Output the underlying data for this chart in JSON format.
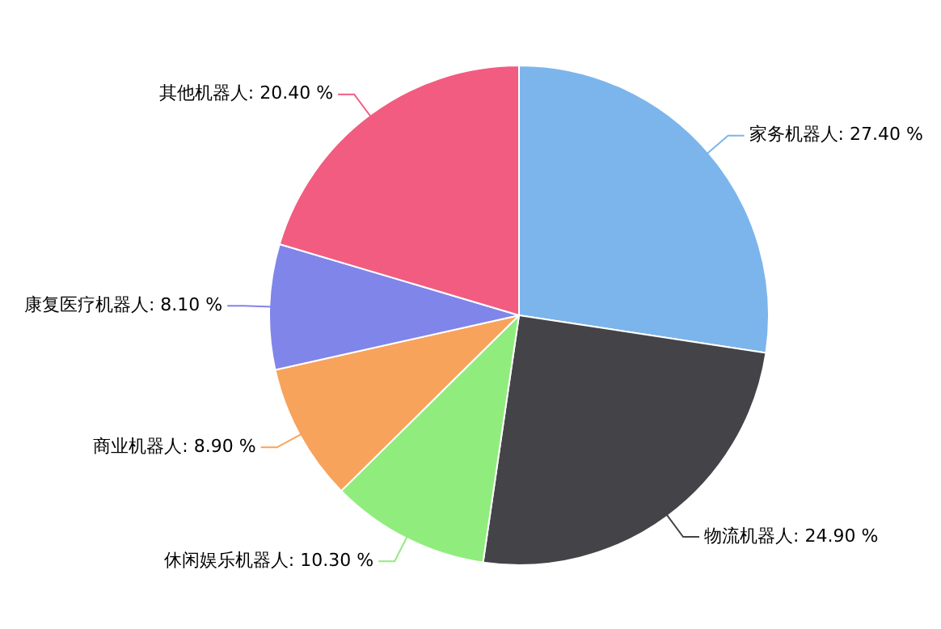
{
  "chart_data": {
    "type": "pie",
    "categories": [
      "家务机器人",
      "物流机器人",
      "休闲娱乐机器人",
      "商业机器人",
      "康复医疗机器人",
      "其他机器人"
    ],
    "values": [
      27.4,
      24.9,
      10.3,
      8.9,
      8.1,
      20.4
    ],
    "value_labels": [
      "27.40 %",
      "24.90 %",
      "10.30 %",
      "8.90 %",
      "8.10 %",
      "20.40 %"
    ],
    "colors": [
      "#7cb5ec",
      "#434348",
      "#90ed7d",
      "#f7a35c",
      "#8085e9",
      "#f15c80"
    ],
    "legend": false
  }
}
